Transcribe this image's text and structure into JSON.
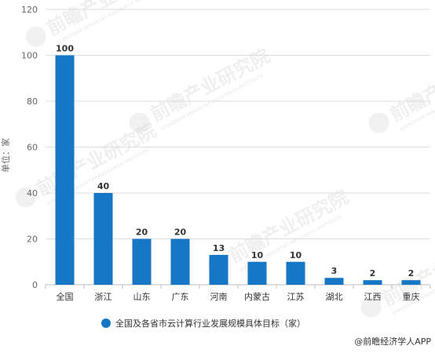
{
  "chart_data": {
    "type": "bar",
    "categories": [
      "全国",
      "浙江",
      "山东",
      "广东",
      "河南",
      "内蒙古",
      "江苏",
      "湖北",
      "江西",
      "重庆"
    ],
    "series": [
      {
        "name": "全国及各省市云计算行业发展规模具体目标（家）",
        "values": [
          100,
          40,
          20,
          20,
          13,
          10,
          10,
          3,
          2,
          2
        ],
        "color": "#1577c5"
      }
    ],
    "ylabel": "单位：家",
    "ylim": [
      0,
      120
    ],
    "yticks": [
      0,
      20,
      40,
      60,
      80,
      100,
      120
    ],
    "grid": true,
    "legend_position": "bottom"
  },
  "source": "@前瞻经济学人APP",
  "watermark": {
    "brand": "前瞻产业研究院",
    "sub": "QIANZHAN INDUSTRY RESEARCH INSTITUTE"
  }
}
